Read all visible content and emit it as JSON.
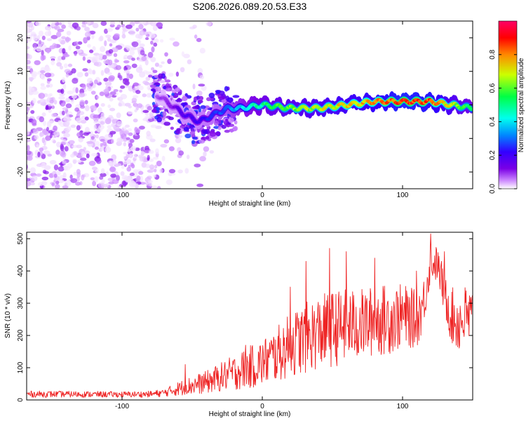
{
  "title": "S206.2026.089.20.53.E33",
  "chart_data": [
    {
      "type": "heatmap",
      "xlabel": "Height of straight line (km)",
      "ylabel": "Frequency (Hz)",
      "xlim": [
        -168,
        150
      ],
      "ylim": [
        -25,
        25
      ],
      "xticks": [
        -100,
        0,
        100
      ],
      "xtick_labels": [
        "-100",
        "0",
        "100"
      ],
      "yticks": [
        -20,
        -10,
        0,
        10,
        20
      ],
      "ytick_labels": [
        "-20",
        "-10",
        "0",
        "10",
        "20"
      ],
      "colorbar": {
        "label": "Normalized spectral amplitude",
        "range": [
          0,
          1
        ],
        "ticks": [
          0.0,
          0.2,
          0.4,
          0.6,
          0.8
        ],
        "tick_labels": [
          "0.0",
          "0.2",
          "0.4",
          "0.6",
          "0.8"
        ],
        "colors": [
          "#ffffff",
          "#cc88ff",
          "#7a00e6",
          "#3300ff",
          "#0088ff",
          "#00ffee",
          "#00ff44",
          "#ccff00",
          "#ff8800",
          "#ff0000",
          "#ff0066"
        ]
      },
      "features": {
        "noise_region_x": [
          -168,
          -70
        ],
        "noise_amplitude_range": [
          0.02,
          0.2
        ],
        "signal_track": {
          "x": [
            -75,
            -65,
            -55,
            -45,
            -35,
            -25,
            -15,
            0,
            20,
            40,
            60,
            80,
            100,
            120,
            135,
            150
          ],
          "freq": [
            3,
            0,
            -3,
            -5,
            -3,
            -1,
            -1,
            0,
            -1,
            -1,
            0,
            1,
            1,
            1,
            0,
            -1
          ],
          "amplitude": [
            0.15,
            0.2,
            0.28,
            0.3,
            0.35,
            0.4,
            0.5,
            0.6,
            0.7,
            0.75,
            0.8,
            0.85,
            0.95,
            0.9,
            0.75,
            0.6
          ]
        }
      }
    },
    {
      "type": "line",
      "xlabel": "Height of straight line (km)",
      "ylabel": "SNR (10 * v/v)",
      "xlim": [
        -168,
        150
      ],
      "ylim": [
        0,
        520
      ],
      "xticks": [
        -100,
        0,
        100
      ],
      "xtick_labels": [
        "-100",
        "0",
        "100"
      ],
      "yticks": [
        0,
        100,
        200,
        300,
        400,
        500
      ],
      "ytick_labels": [
        "0",
        "100",
        "200",
        "300",
        "400",
        "500"
      ],
      "series": [
        {
          "name": "SNR",
          "color": "#ee2222",
          "envelope": {
            "x": [
              -168,
              -150,
              -100,
              -80,
              -70,
              -60,
              -50,
              -40,
              -30,
              -20,
              -10,
              0,
              10,
              20,
              30,
              40,
              50,
              60,
              70,
              80,
              90,
              100,
              110,
              115,
              120,
              125,
              130,
              135,
              140,
              145,
              150
            ],
            "mid": [
              18,
              18,
              17,
              18,
              22,
              35,
              45,
              55,
              70,
              85,
              100,
              115,
              140,
              170,
              190,
              210,
              220,
              230,
              235,
              245,
              250,
              260,
              250,
              300,
              430,
              420,
              330,
              260,
              240,
              260,
              250
            ],
            "spread": [
              10,
              10,
              9,
              10,
              12,
              22,
              30,
              35,
              45,
              55,
              65,
              75,
              85,
              100,
              110,
              115,
              120,
              115,
              110,
              110,
              110,
              100,
              90,
              80,
              60,
              55,
              70,
              90,
              100,
              100,
              100
            ]
          },
          "peaks": {
            "x": [
              -55,
              -12,
              20,
              31,
              48,
              60,
              80,
              110,
              120,
              130
            ],
            "y": [
              110,
              170,
              350,
              430,
              470,
              460,
              440,
              400,
              515,
              460
            ]
          }
        }
      ]
    }
  ]
}
